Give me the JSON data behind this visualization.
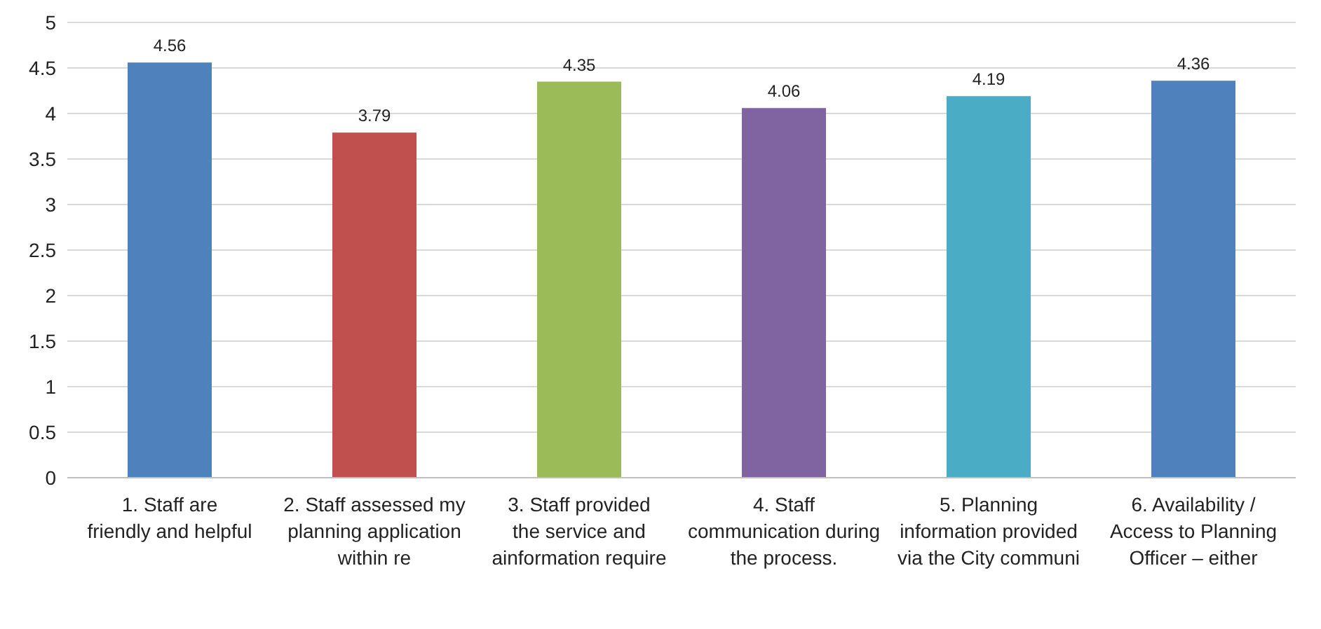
{
  "chart_data": {
    "type": "bar",
    "categories": [
      "1. Staff are friendly and helpful",
      "2. Staff assessed my planning application within re",
      "3. Staff provided the service and ainformation require",
      "4. Staff communication during the process.",
      "5. Planning information provided via the City communi",
      "6. Availability / Access to Planning Officer – either"
    ],
    "values": [
      4.56,
      3.79,
      4.35,
      4.06,
      4.19,
      4.36
    ],
    "colors": [
      "#4f81bd",
      "#c0504d",
      "#9bbb59",
      "#8064a2",
      "#4bacc6",
      "#4f81bd"
    ],
    "ylim": [
      0,
      5
    ],
    "yticks": [
      0,
      0.5,
      1,
      1.5,
      2,
      2.5,
      3,
      3.5,
      4,
      4.5,
      5
    ],
    "grid": "y",
    "data_labels": true
  }
}
